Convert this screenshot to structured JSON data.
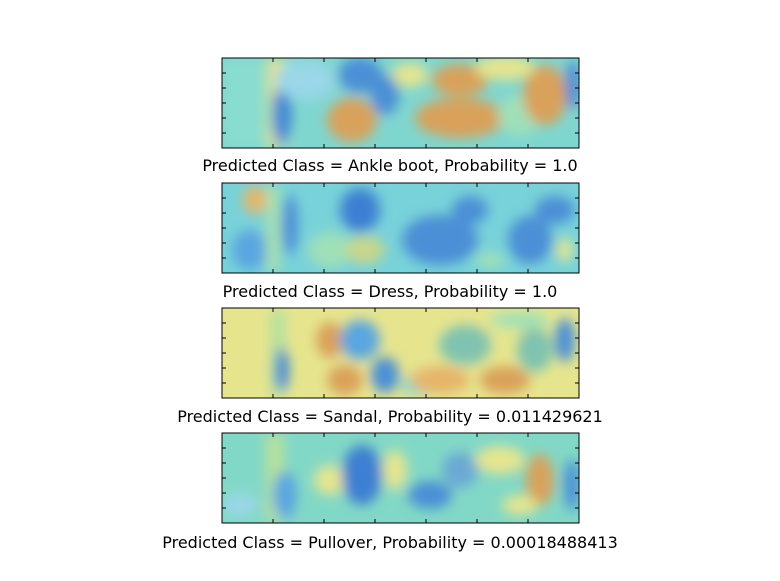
{
  "chart_data": [
    {
      "type": "heatmap",
      "title": "Predicted Class = Ankle boot, Probability = 1.0",
      "predicted_class": "Ankle boot",
      "probability": 1.0,
      "colormap": "jet",
      "base_color": "#7fd6cf"
    },
    {
      "type": "heatmap",
      "title": "Predicted Class = Dress, Probability = 1.0",
      "predicted_class": "Dress",
      "probability": 1.0,
      "colormap": "jet",
      "base_color": "#78d2d9"
    },
    {
      "type": "heatmap",
      "title": "Predicted Class = Sandal, Probability = 0.011429621",
      "predicted_class": "Sandal",
      "probability": 0.011429621,
      "colormap": "jet",
      "base_color": "#e6e58e"
    },
    {
      "type": "heatmap",
      "title": "Predicted Class = Pullover, Probability = 0.00018488413",
      "predicted_class": "Pullover",
      "probability": 0.00018488413,
      "colormap": "jet",
      "base_color": "#82d8c6"
    }
  ]
}
